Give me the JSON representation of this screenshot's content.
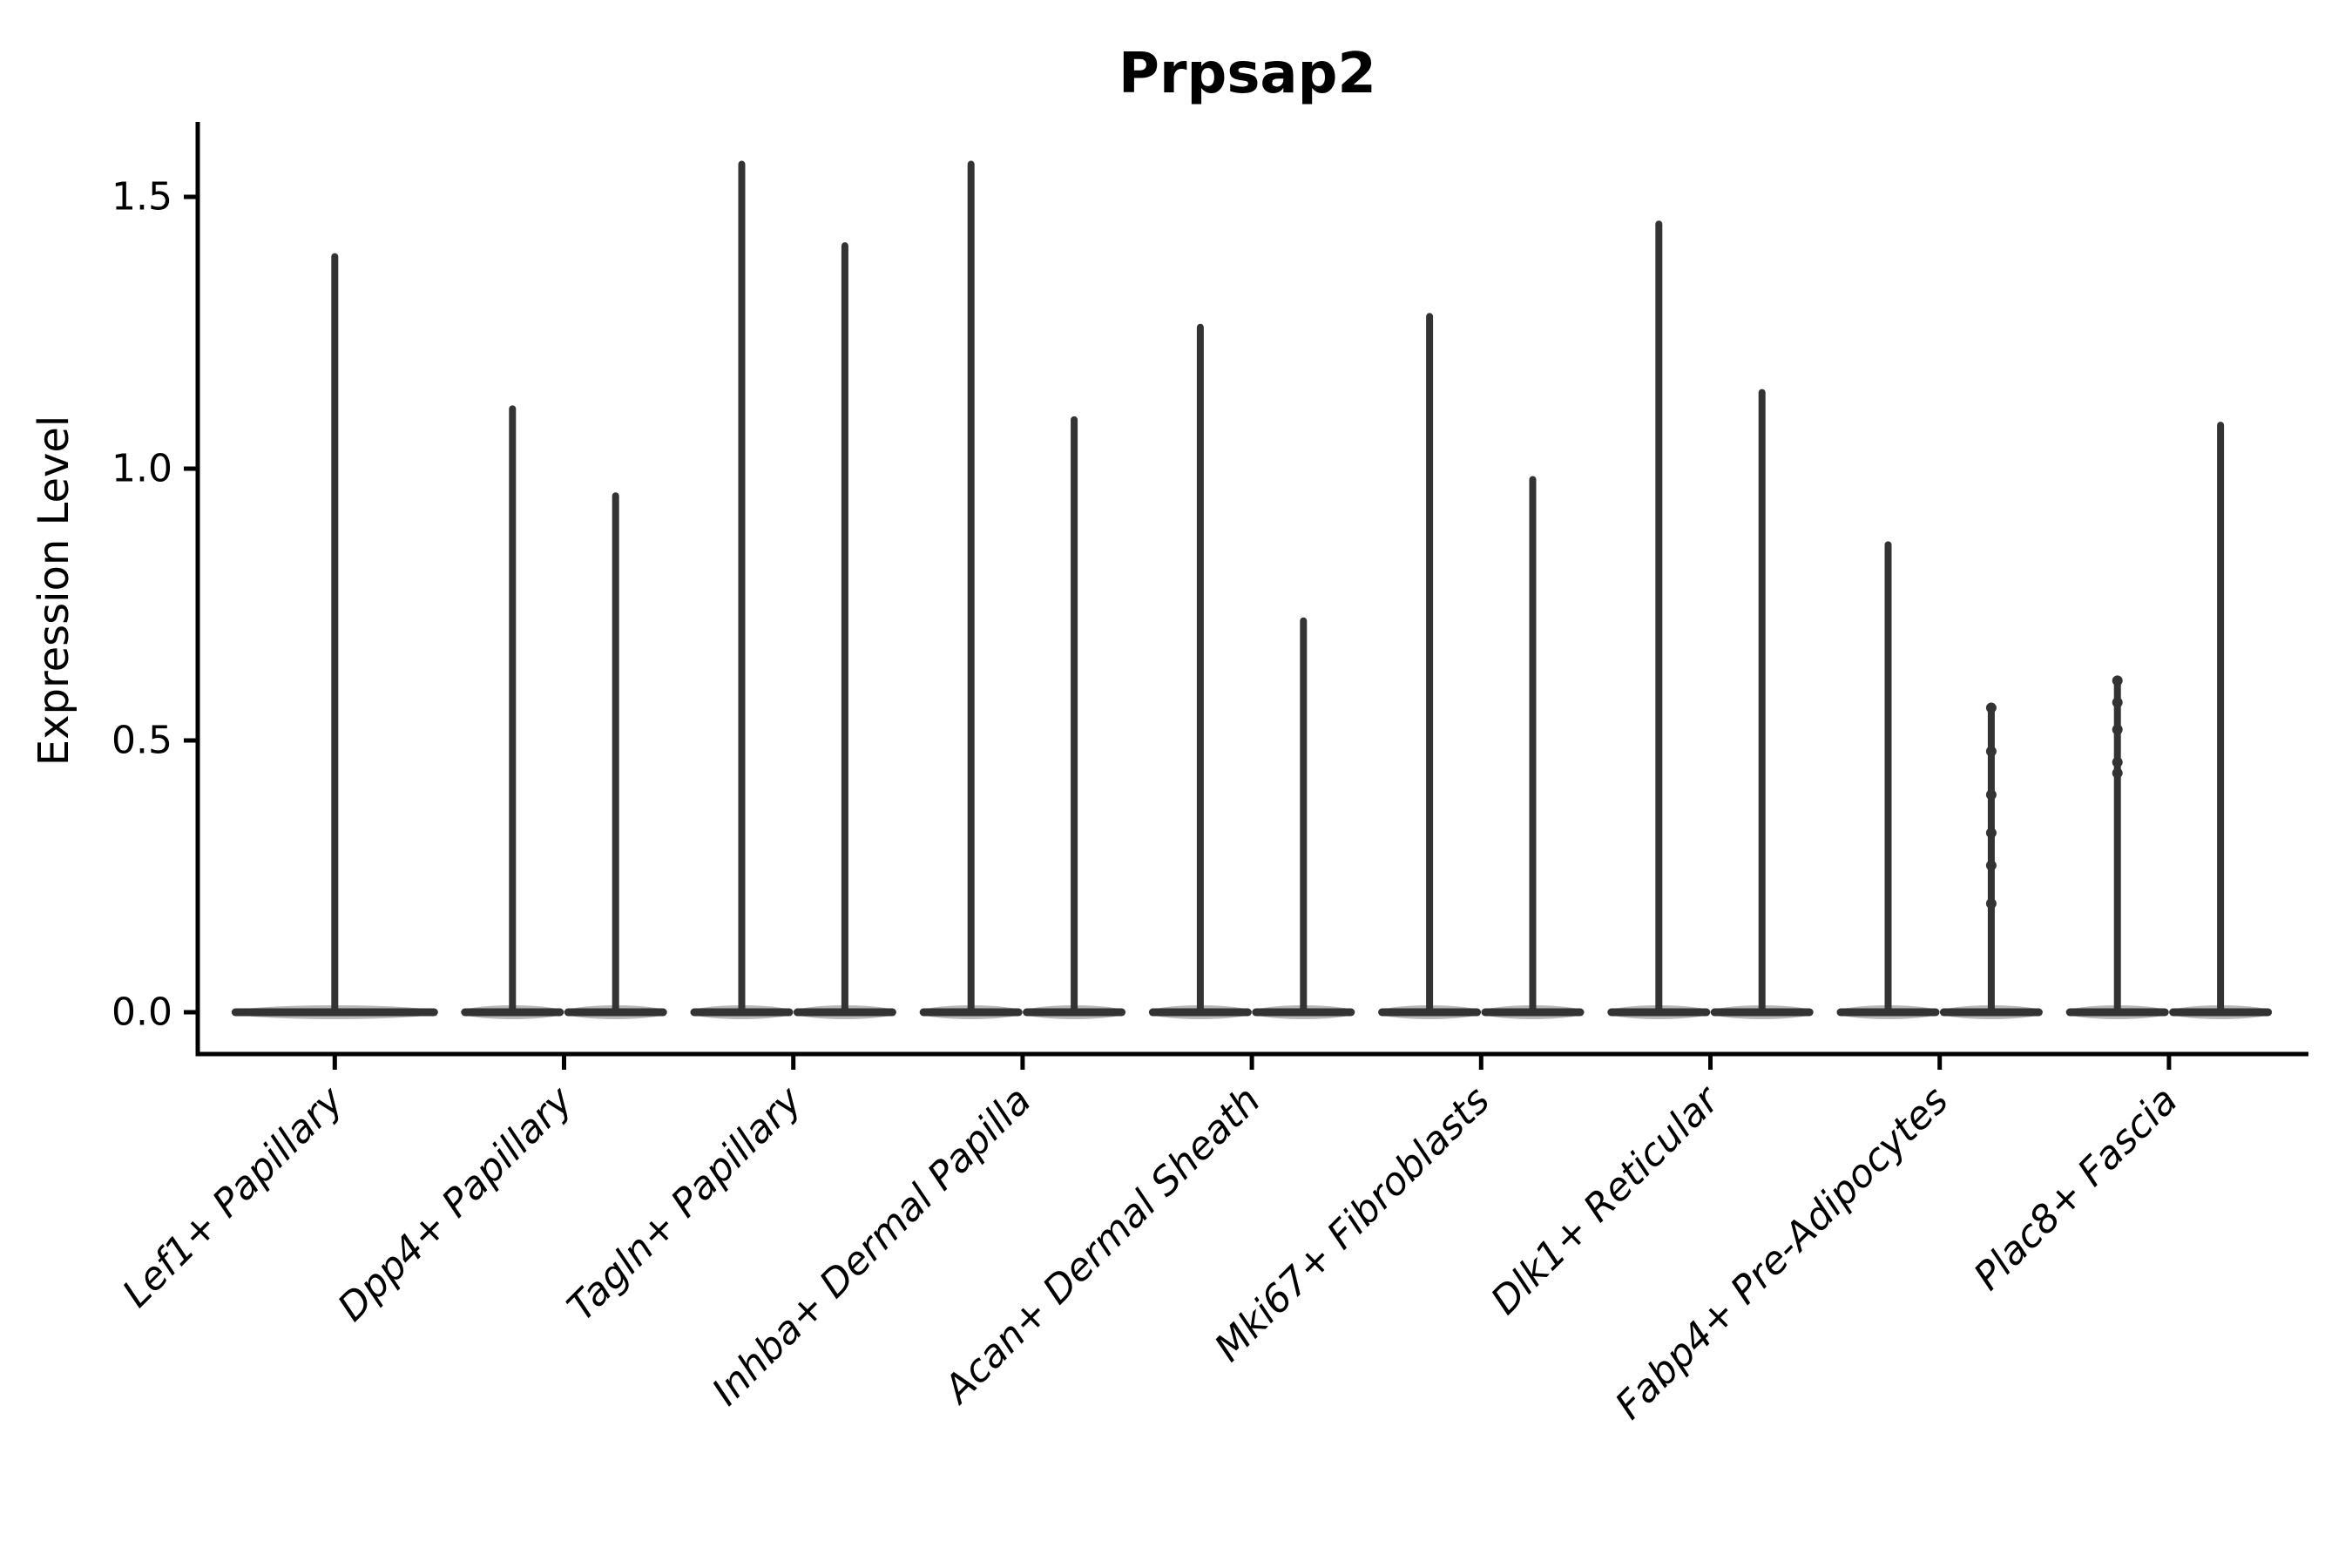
{
  "figure": {
    "title": "Prpsap2",
    "ylabel": "Expression Level",
    "xlabel": ""
  },
  "chart_data": {
    "type": "violin",
    "title": "Prpsap2",
    "ylabel": "Expression Level",
    "xlabel": "",
    "orientation": "vertical",
    "grid": false,
    "legend": false,
    "x_tick_rotation": 45,
    "ylim": [
      -0.08,
      1.64
    ],
    "yticks": [
      {
        "value": 0.0,
        "label": "0.0"
      },
      {
        "value": 0.5,
        "label": "0.5"
      },
      {
        "value": 1.0,
        "label": "1.0"
      },
      {
        "value": 1.5,
        "label": "1.5"
      }
    ],
    "style": {
      "violin_color": "#333333",
      "axis_color": "#000000",
      "text_color": "#000000",
      "background": "#ffffff"
    },
    "shape_note": "Each violin is zero-inflated: a wide flat disc at expression 0 with a thin spike reaching its maximum value; dots are jittered cells at non-zero expression.",
    "categories": [
      {
        "label": "Lef1+ Papillary",
        "violins": [
          {
            "max": 1.39,
            "points": []
          }
        ]
      },
      {
        "label": "Dpp4+ Papillary",
        "violins": [
          {
            "max": 1.11,
            "points": []
          },
          {
            "max": 0.95,
            "points": []
          }
        ]
      },
      {
        "label": "Tagln+ Papillary",
        "violins": [
          {
            "max": 1.56,
            "points": []
          },
          {
            "max": 1.41,
            "points": []
          }
        ]
      },
      {
        "label": "Inhba+ Dermal Papilla",
        "violins": [
          {
            "max": 1.56,
            "points": []
          },
          {
            "max": 1.09,
            "points": []
          }
        ]
      },
      {
        "label": "Acan+ Dermal Sheath",
        "violins": [
          {
            "max": 1.26,
            "points": []
          },
          {
            "max": 0.72,
            "points": []
          }
        ]
      },
      {
        "label": "Mki67+ Fibroblasts",
        "violins": [
          {
            "max": 1.28,
            "points": []
          },
          {
            "max": 0.98,
            "points": []
          }
        ]
      },
      {
        "label": "Dlk1+ Reticular",
        "violins": [
          {
            "max": 1.45,
            "points": []
          },
          {
            "max": 1.14,
            "points": []
          }
        ]
      },
      {
        "label": "Fabp4+ Pre-Adipocytes",
        "violins": [
          {
            "max": 0.86,
            "points": []
          },
          {
            "max": 0.56,
            "points": [
              0.56,
              0.48,
              0.4,
              0.33,
              0.27,
              0.2
            ]
          }
        ]
      },
      {
        "label": "Plac8+ Fascia",
        "violins": [
          {
            "max": 0.61,
            "points": [
              0.61,
              0.57,
              0.52,
              0.46,
              0.44
            ]
          },
          {
            "max": 1.08,
            "points": []
          }
        ]
      }
    ]
  }
}
